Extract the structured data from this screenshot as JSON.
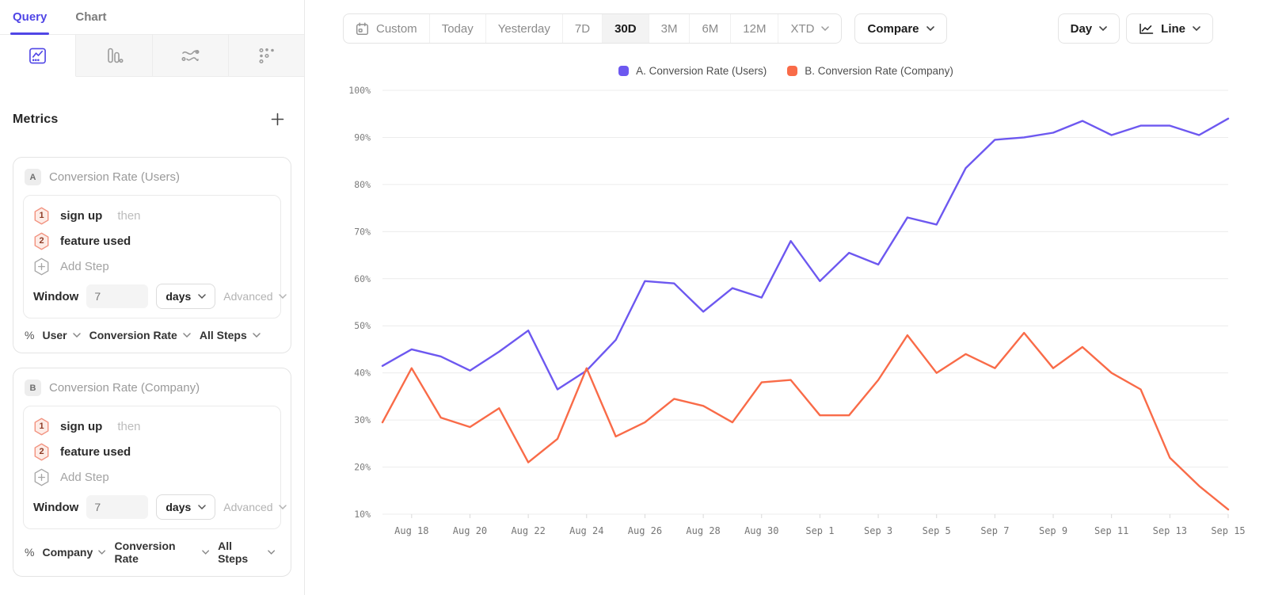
{
  "colors": {
    "accent": "#5046e6",
    "series_a": "#6d58f0",
    "series_b": "#f96b48"
  },
  "tabs": {
    "query": "Query",
    "chart": "Chart"
  },
  "sidebar": {
    "view_tabs": [
      "line-chart",
      "bar-chart",
      "flow",
      "scatter"
    ]
  },
  "metrics": {
    "heading": "Metrics",
    "cards": [
      {
        "badge": "A",
        "title": "Conversion Rate (Users)",
        "steps": [
          {
            "num": "1",
            "event": "sign up",
            "suffix": "then"
          },
          {
            "num": "2",
            "event": "feature used",
            "suffix": ""
          }
        ],
        "add_step": "Add Step",
        "window": {
          "label": "Window",
          "value": "7",
          "unit": "days",
          "advanced": "Advanced"
        },
        "measure": {
          "symbol": "%",
          "entity": "User",
          "metric": "Conversion Rate",
          "steps_scope": "All Steps"
        }
      },
      {
        "badge": "B",
        "title": "Conversion Rate (Company)",
        "steps": [
          {
            "num": "1",
            "event": "sign up",
            "suffix": "then"
          },
          {
            "num": "2",
            "event": "feature used",
            "suffix": ""
          }
        ],
        "add_step": "Add Step",
        "window": {
          "label": "Window",
          "value": "7",
          "unit": "days",
          "advanced": "Advanced"
        },
        "measure": {
          "symbol": "%",
          "entity": "Company",
          "metric": "Conversion Rate",
          "steps_scope": "All Steps"
        }
      }
    ]
  },
  "toolbar": {
    "ranges": [
      "Custom",
      "Today",
      "Yesterday",
      "7D",
      "30D",
      "3M",
      "6M",
      "12M",
      "XTD"
    ],
    "active_range": "30D",
    "compare": "Compare",
    "granularity": "Day",
    "chart_type": "Line"
  },
  "legend": [
    {
      "label": "A. Conversion Rate (Users)",
      "color": "#6d58f0"
    },
    {
      "label": "B. Conversion Rate (Company)",
      "color": "#f96b48"
    }
  ],
  "chart_data": {
    "type": "line",
    "x": [
      "Aug 17",
      "Aug 18",
      "Aug 19",
      "Aug 20",
      "Aug 21",
      "Aug 22",
      "Aug 23",
      "Aug 24",
      "Aug 25",
      "Aug 26",
      "Aug 27",
      "Aug 28",
      "Aug 29",
      "Aug 30",
      "Aug 31",
      "Sep 1",
      "Sep 2",
      "Sep 3",
      "Sep 4",
      "Sep 5",
      "Sep 6",
      "Sep 7",
      "Sep 8",
      "Sep 9",
      "Sep 10",
      "Sep 11",
      "Sep 12",
      "Sep 13",
      "Sep 14",
      "Sep 15"
    ],
    "series": [
      {
        "name": "A. Conversion Rate (Users)",
        "color": "#6d58f0",
        "values": [
          41.5,
          45,
          43.5,
          40.5,
          44.5,
          49,
          36.5,
          40.5,
          47,
          59.5,
          59,
          53,
          58,
          56,
          68,
          59.5,
          65.5,
          63,
          73,
          71.5,
          83.5,
          89.5,
          90,
          91,
          93.5,
          90.5,
          92.5,
          92.5,
          90.5,
          94
        ]
      },
      {
        "name": "B. Conversion Rate (Company)",
        "color": "#f96b48",
        "values": [
          29.5,
          41,
          30.5,
          28.5,
          32.5,
          21,
          26,
          41,
          26.5,
          29.5,
          34.5,
          33,
          29.5,
          38,
          38.5,
          31,
          31,
          38.5,
          48,
          40,
          44,
          41,
          48.5,
          41,
          45.5,
          40,
          36.5,
          22,
          16,
          11
        ]
      }
    ],
    "ylim": [
      10,
      100
    ],
    "yticks": [
      100,
      90,
      80,
      70,
      60,
      50,
      40,
      30,
      20,
      10
    ],
    "ytick_format": "percent",
    "xticks_start_index": 1,
    "xtick_every": 2,
    "grid": "horizontal",
    "legend_position": "top-center"
  }
}
